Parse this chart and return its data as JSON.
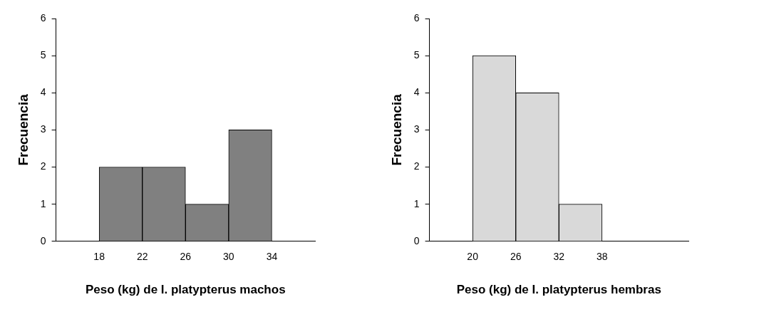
{
  "chart_data": [
    {
      "type": "histogram",
      "xlabel": "Peso (kg) de I. platypterus machos",
      "ylabel": "Frecuencia",
      "bins": [
        18,
        22,
        26,
        30,
        34
      ],
      "values": [
        2,
        2,
        1,
        3
      ],
      "color": "#808080",
      "xlim": [
        14,
        38
      ],
      "xticks": [
        18,
        22,
        26,
        30,
        34
      ],
      "ylim": [
        0,
        6
      ],
      "yticks": [
        0,
        1,
        2,
        3,
        4,
        5,
        6
      ],
      "grid": false,
      "legend": false
    },
    {
      "type": "histogram",
      "xlabel": "Peso (kg) de I. platypterus hembras",
      "ylabel": "Frecuencia",
      "bins": [
        20,
        26,
        32,
        38
      ],
      "values": [
        5,
        4,
        1
      ],
      "color": "#d9d9d9",
      "xlim": [
        14,
        50
      ],
      "xticks": [
        20,
        26,
        32,
        38
      ],
      "ylim": [
        0,
        6
      ],
      "yticks": [
        0,
        1,
        2,
        3,
        4,
        5,
        6
      ],
      "grid": false,
      "legend": false
    }
  ]
}
